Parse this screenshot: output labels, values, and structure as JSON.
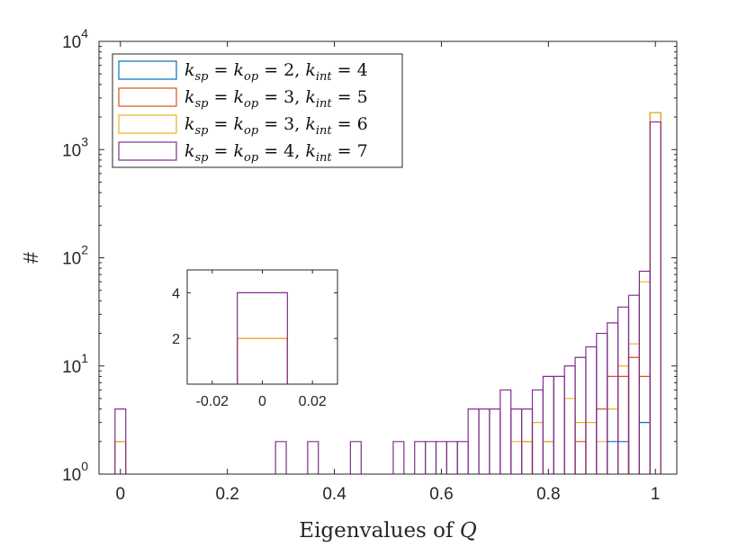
{
  "chart_data": [
    {
      "type": "histogram",
      "xlabel": "Eigenvalues of Q",
      "ylabel": "#",
      "yscale": "log",
      "ylim": [
        1,
        10000
      ],
      "xlim": [
        -0.04,
        1.04
      ],
      "xticks": [
        "0",
        "0.2",
        "0.4",
        "0.6",
        "0.8",
        "1"
      ],
      "yticks": [
        {
          "base": "10",
          "exp": "0"
        },
        {
          "base": "10",
          "exp": "1"
        },
        {
          "base": "10",
          "exp": "2"
        },
        {
          "base": "10",
          "exp": "3"
        },
        {
          "base": "10",
          "exp": "4"
        }
      ],
      "bin_width": 0.02,
      "legend_position": "top-left",
      "series": [
        {
          "name": "k_sp = k_op = 2, k_int = 4",
          "color": "#0072BD",
          "bins": [
            {
              "center": 0.92,
              "count": 2
            },
            {
              "center": 0.94,
              "count": 2
            },
            {
              "center": 0.98,
              "count": 3
            },
            {
              "center": 1.0,
              "count": 2200
            }
          ]
        },
        {
          "name": "k_sp = k_op = 3, k_int = 5",
          "color": "#D95319",
          "bins": [
            {
              "center": 0.0,
              "count": 2
            },
            {
              "center": 0.76,
              "count": 2
            },
            {
              "center": 0.8,
              "count": 2
            },
            {
              "center": 0.86,
              "count": 2
            },
            {
              "center": 0.9,
              "count": 4
            },
            {
              "center": 0.92,
              "count": 8
            },
            {
              "center": 0.94,
              "count": 8
            },
            {
              "center": 0.96,
              "count": 12
            },
            {
              "center": 0.98,
              "count": 8
            },
            {
              "center": 1.0,
              "count": 2200
            }
          ]
        },
        {
          "name": "k_sp = k_op = 3, k_int = 6",
          "color": "#EDB120",
          "bins": [
            {
              "center": 0.0,
              "count": 2
            },
            {
              "center": 0.74,
              "count": 2
            },
            {
              "center": 0.76,
              "count": 2
            },
            {
              "center": 0.78,
              "count": 3
            },
            {
              "center": 0.8,
              "count": 2
            },
            {
              "center": 0.84,
              "count": 5
            },
            {
              "center": 0.86,
              "count": 3
            },
            {
              "center": 0.88,
              "count": 3
            },
            {
              "center": 0.9,
              "count": 2
            },
            {
              "center": 0.92,
              "count": 4
            },
            {
              "center": 0.94,
              "count": 10
            },
            {
              "center": 0.96,
              "count": 16
            },
            {
              "center": 0.98,
              "count": 60
            },
            {
              "center": 1.0,
              "count": 2200
            }
          ]
        },
        {
          "name": "k_sp = k_op = 4, k_int = 7",
          "color": "#7E2F8E",
          "bins": [
            {
              "center": 0.0,
              "count": 4
            },
            {
              "center": 0.3,
              "count": 2
            },
            {
              "center": 0.36,
              "count": 2
            },
            {
              "center": 0.44,
              "count": 2
            },
            {
              "center": 0.52,
              "count": 2
            },
            {
              "center": 0.56,
              "count": 2
            },
            {
              "center": 0.58,
              "count": 2
            },
            {
              "center": 0.6,
              "count": 2
            },
            {
              "center": 0.62,
              "count": 2
            },
            {
              "center": 0.64,
              "count": 2
            },
            {
              "center": 0.66,
              "count": 4
            },
            {
              "center": 0.68,
              "count": 4
            },
            {
              "center": 0.7,
              "count": 4
            },
            {
              "center": 0.72,
              "count": 6
            },
            {
              "center": 0.74,
              "count": 4
            },
            {
              "center": 0.76,
              "count": 4
            },
            {
              "center": 0.78,
              "count": 6
            },
            {
              "center": 0.8,
              "count": 8
            },
            {
              "center": 0.82,
              "count": 8
            },
            {
              "center": 0.84,
              "count": 10
            },
            {
              "center": 0.86,
              "count": 12
            },
            {
              "center": 0.88,
              "count": 15
            },
            {
              "center": 0.9,
              "count": 20
            },
            {
              "center": 0.92,
              "count": 25
            },
            {
              "center": 0.94,
              "count": 35
            },
            {
              "center": 0.96,
              "count": 45
            },
            {
              "center": 0.98,
              "count": 75
            },
            {
              "center": 1.0,
              "count": 1800
            }
          ]
        }
      ]
    },
    {
      "type": "histogram",
      "role": "inset",
      "xlim": [
        -0.03,
        0.03
      ],
      "ylim": [
        0,
        5
      ],
      "xticks": [
        "-0.02",
        "0",
        "0.02"
      ],
      "yticks": [
        "2",
        "4"
      ],
      "bin_width": 0.02,
      "series": [
        {
          "name": "k_sp = k_op = 3, k_int = 5",
          "color": "#D95319",
          "bins": [
            {
              "center": 0.0,
              "count": 2
            }
          ]
        },
        {
          "name": "k_sp = k_op = 3, k_int = 6",
          "color": "#EDB120",
          "bins": [
            {
              "center": 0.0,
              "count": 2
            }
          ]
        },
        {
          "name": "k_sp = k_op = 4, k_int = 7",
          "color": "#7E2F8E",
          "bins": [
            {
              "center": 0.0,
              "count": 4
            }
          ]
        }
      ]
    }
  ],
  "legend": {
    "entries": [
      {
        "swatch_color": "#0072BD",
        "k1": "sp",
        "k2": "op",
        "eq1": " = ",
        "eq2": " = 2, ",
        "k3": "int",
        "tail": " = 4"
      },
      {
        "swatch_color": "#D95319",
        "k1": "sp",
        "k2": "op",
        "eq1": " = ",
        "eq2": " = 3, ",
        "k3": "int",
        "tail": " = 5"
      },
      {
        "swatch_color": "#EDB120",
        "k1": "sp",
        "k2": "op",
        "eq1": " = ",
        "eq2": " = 3, ",
        "k3": "int",
        "tail": " = 6"
      },
      {
        "swatch_color": "#7E2F8E",
        "k1": "sp",
        "k2": "op",
        "eq1": " = ",
        "eq2": " = 4, ",
        "k3": "int",
        "tail": " = 7"
      }
    ]
  }
}
